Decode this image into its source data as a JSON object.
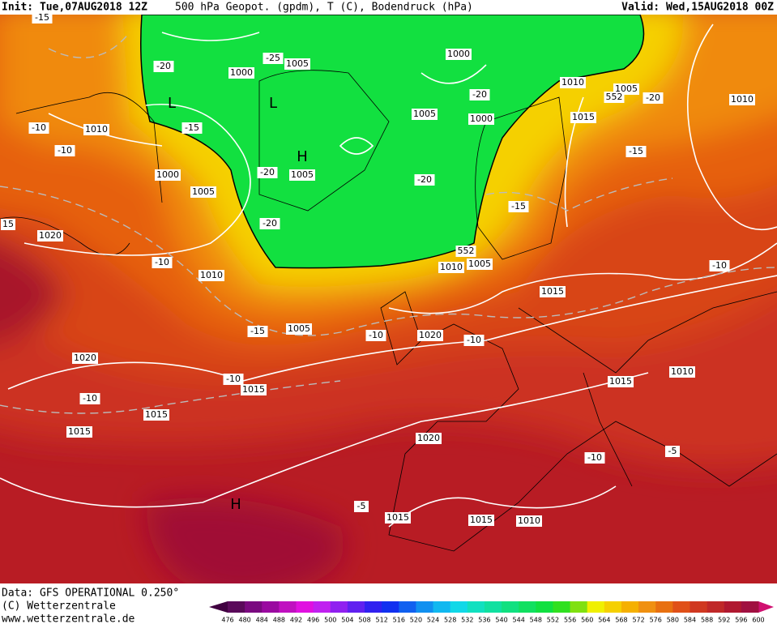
{
  "header": {
    "init": "Init: Tue,07AUG2018 12Z",
    "title": "500 hPa Geopot. (gpdm), T (C), Bodendruck (hPa)",
    "valid": "Valid: Wed,15AUG2018 00Z"
  },
  "footer": {
    "source": "Data: GFS OPERATIONAL 0.250°",
    "copyright": "(C) Wetterzentrale",
    "url": "www.wetterzentrale.de"
  },
  "legend": {
    "labels": [
      476,
      480,
      484,
      488,
      492,
      496,
      500,
      504,
      508,
      512,
      516,
      520,
      524,
      528,
      532,
      536,
      540,
      544,
      548,
      552,
      556,
      560,
      564,
      568,
      572,
      576,
      580,
      584,
      588,
      592,
      596,
      600
    ],
    "colors": [
      "#5a0a5a",
      "#7a0a80",
      "#9a0aa0",
      "#c010c0",
      "#e010e0",
      "#c020f0",
      "#9020f0",
      "#6020f0",
      "#3020f0",
      "#1030f0",
      "#1060f0",
      "#1090f0",
      "#10b8f0",
      "#10d8e8",
      "#10e0c0",
      "#10e0a0",
      "#10e080",
      "#10e060",
      "#10e040",
      "#30e020",
      "#80e010",
      "#f0f000",
      "#f5d000",
      "#f5b000",
      "#f09010",
      "#e87010",
      "#e05018",
      "#d03820",
      "#c02828",
      "#b01830",
      "#a01040"
    ]
  },
  "map_labels": [
    "-15",
    "-20",
    "1000",
    "-25",
    "1005",
    "1000",
    "L",
    "L",
    "-15",
    "1010",
    "-10",
    "-10",
    "H",
    "1005",
    "-20",
    "1000",
    "1005",
    "1005",
    "1000",
    "-20",
    "1010",
    "1005",
    "552",
    "-20",
    "1010",
    "1015",
    "-15",
    "-20",
    "-20",
    "-15",
    "15",
    "1020",
    "-10",
    "1010",
    "552",
    "1010",
    "1005",
    "-10",
    "1015",
    "1005",
    "-15",
    "-10",
    "1020",
    "-10",
    "1020",
    "-10",
    "1015",
    "1015",
    "1010",
    "-10",
    "1015",
    "1015",
    "1020",
    "-5",
    "-10",
    "H",
    "-5",
    "1015",
    "1015",
    "1010"
  ]
}
